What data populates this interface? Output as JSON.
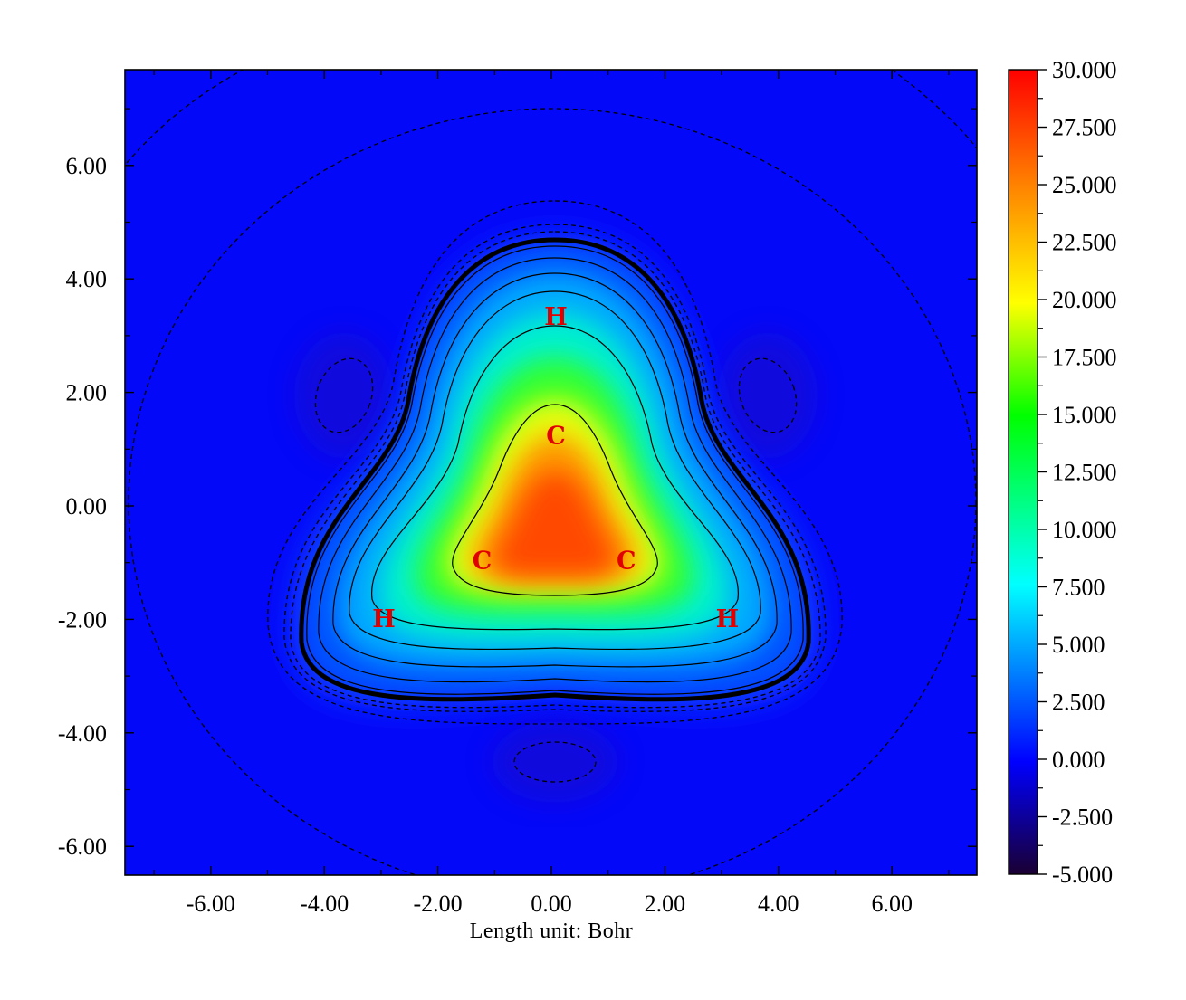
{
  "chart_data": {
    "type": "heatmap",
    "description_of_field": "2D contour-filled map on a plane with three C atoms and three H atoms arranged with 3-fold symmetry",
    "xlabel": "Length unit: Bohr",
    "ylabel": "",
    "xlim": [
      -7.5,
      7.5
    ],
    "ylim": [
      -6.5,
      7.7
    ],
    "x_ticks": [
      -6,
      -4,
      -2,
      0,
      2,
      4,
      6
    ],
    "x_tick_labels": [
      "-6.00",
      "-4.00",
      "-2.00",
      "0.00",
      "2.00",
      "4.00",
      "6.00"
    ],
    "y_ticks": [
      -6,
      -4,
      -2,
      0,
      2,
      4,
      6
    ],
    "y_tick_labels": [
      "-6.00",
      "-4.00",
      "-2.00",
      "0.00",
      "2.00",
      "4.00",
      "6.00"
    ],
    "colorbar": {
      "min": -5.0,
      "max": 30.0,
      "ticks": [
        30,
        27.5,
        25,
        22.5,
        20,
        17.5,
        15,
        12.5,
        10,
        7.5,
        5,
        2.5,
        0,
        -2.5,
        -5
      ],
      "tick_labels": [
        "30.000",
        "27.500",
        "25.000",
        "22.500",
        "20.000",
        "17.500",
        "15.000",
        "12.500",
        "10.000",
        "7.500",
        "5.000",
        "2.500",
        "0.000",
        "-2.500",
        "-5.000"
      ],
      "colormap": [
        "#1a0033",
        "#0000ff",
        "#00ffff",
        "#00ff00",
        "#ffff00",
        "#ff7f00",
        "#ff0000"
      ]
    },
    "atoms": [
      {
        "label": "C",
        "x": 0.08,
        "y": 1.25
      },
      {
        "label": "C",
        "x": -1.22,
        "y": -0.95
      },
      {
        "label": "C",
        "x": 1.32,
        "y": -0.95
      },
      {
        "label": "H",
        "x": 0.08,
        "y": 3.35
      },
      {
        "label": "H",
        "x": -2.95,
        "y": -1.98
      },
      {
        "label": "H",
        "x": 3.1,
        "y": -1.98
      }
    ],
    "atom_label_color": "#e00000",
    "contours": {
      "positive": "solid black lines",
      "negative": "dashed black lines"
    }
  }
}
